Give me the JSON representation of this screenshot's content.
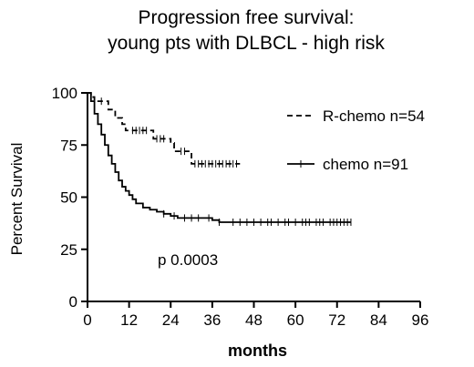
{
  "chart_data": {
    "type": "line",
    "title": "Progression free survival:",
    "subtitle": "young pts with DLBCL - high risk",
    "xlabel": "months",
    "ylabel": "Percent Survival",
    "xlim": [
      0,
      96
    ],
    "ylim": [
      0,
      100
    ],
    "xticks": [
      "0",
      "12",
      "24",
      "36",
      "48",
      "60",
      "72",
      "84",
      "96"
    ],
    "yticks": [
      "0",
      "25",
      "50",
      "75",
      "100"
    ],
    "annotation": "p 0.0003",
    "legend_position": "right",
    "series": [
      {
        "name": "R-chemo n=54",
        "style": "dashed",
        "x": [
          0,
          1,
          2,
          3,
          6,
          8,
          10,
          11,
          18,
          19,
          24,
          25,
          29,
          30,
          44
        ],
        "y": [
          100,
          98,
          96,
          96,
          92,
          88,
          85,
          82,
          82,
          78,
          76,
          72,
          72,
          66,
          66
        ],
        "censor_x": [
          4,
          13,
          14,
          15,
          16,
          17,
          20,
          21,
          22,
          27,
          28,
          31,
          32,
          33,
          34,
          35,
          36,
          37,
          38,
          39,
          40,
          41,
          42,
          43
        ]
      },
      {
        "name": "chemo n=91",
        "style": "solid",
        "x": [
          0,
          1,
          2,
          3,
          4,
          5,
          6,
          7,
          8,
          9,
          10,
          11,
          12,
          13,
          14,
          16,
          18,
          20,
          22,
          24,
          26,
          28,
          30,
          32,
          34,
          36,
          38,
          40,
          76
        ],
        "y": [
          100,
          96,
          90,
          85,
          80,
          75,
          70,
          66,
          62,
          58,
          55,
          53,
          51,
          49,
          47,
          45,
          44,
          43,
          42,
          41,
          40,
          40,
          40,
          40,
          40,
          39,
          38,
          38,
          38
        ],
        "censor_x": [
          22,
          25,
          28,
          30,
          32,
          35,
          38,
          42,
          44,
          46,
          48,
          50,
          52,
          53,
          55,
          57,
          58,
          60,
          62,
          63,
          64,
          66,
          67,
          68,
          70,
          71,
          72,
          73,
          74,
          75,
          76
        ]
      }
    ]
  }
}
